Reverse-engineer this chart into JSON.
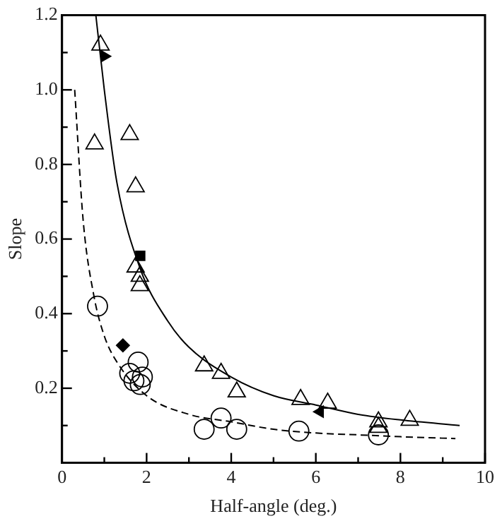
{
  "chart_data": {
    "type": "scatter",
    "xlabel": "Half-angle (deg.)",
    "ylabel": "Slope",
    "xlim": [
      0,
      10
    ],
    "ylim": [
      0,
      1.2
    ],
    "xticks": [
      0,
      {
        "value": 1,
        "label": null
      },
      2,
      {
        "value": 3,
        "label": null
      },
      4,
      {
        "value": 5,
        "label": null
      },
      6,
      {
        "value": 7,
        "label": null
      },
      8,
      {
        "value": 9,
        "label": null
      },
      10
    ],
    "yticks": [
      {
        "value": 0,
        "label": null
      },
      {
        "value": 0.1,
        "label": null
      },
      0.2,
      {
        "value": 0.3,
        "label": null
      },
      0.4,
      {
        "value": 0.5,
        "label": null
      },
      0.6,
      {
        "value": 0.7,
        "label": null
      },
      0.8,
      {
        "value": 0.9,
        "label": null
      },
      {
        "value": 1.0,
        "label": "1.0"
      },
      {
        "value": 1.1,
        "label": null
      },
      1.2
    ],
    "grid": false,
    "legend": false,
    "series": [
      {
        "type": "line",
        "color": "#000000",
        "line_style": "solid",
        "marker": "none",
        "x": [
          0.8,
          1.0,
          1.3,
          1.85,
          2.5,
          3,
          4,
          5,
          6,
          7,
          8,
          9.4
        ],
        "values": [
          1.2,
          1.0,
          0.75,
          0.52,
          0.38,
          0.31,
          0.23,
          0.18,
          0.155,
          0.13,
          0.115,
          0.1
        ]
      },
      {
        "type": "line",
        "color": "#000000",
        "line_style": "dashed",
        "marker": "none",
        "x": [
          0.3,
          0.5,
          0.75,
          1,
          1.3,
          2,
          3,
          4,
          5,
          6,
          7,
          8,
          9.3
        ],
        "values": [
          1.0,
          0.65,
          0.45,
          0.34,
          0.27,
          0.18,
          0.13,
          0.11,
          0.09,
          0.08,
          0.075,
          0.07,
          0.065
        ]
      },
      {
        "color": "#000000",
        "marker": "triangle",
        "x": [
          0.91,
          0.77,
          1.6,
          1.74,
          1.74,
          1.84,
          1.84,
          3.36,
          3.76,
          4.13,
          5.64,
          6.28,
          7.48,
          7.48,
          8.22
        ],
        "values": [
          1.12,
          0.855,
          0.88,
          0.74,
          0.525,
          0.5,
          0.475,
          0.26,
          0.24,
          0.19,
          0.17,
          0.16,
          0.11,
          0.095,
          0.114
        ]
      },
      {
        "color": "#000000",
        "marker": "circle",
        "x": [
          0.84,
          1.6,
          1.8,
          1.7,
          1.9,
          1.85,
          3.36,
          3.76,
          4.13,
          5.6,
          7.48
        ],
        "values": [
          0.42,
          0.24,
          0.27,
          0.22,
          0.23,
          0.21,
          0.09,
          0.12,
          0.09,
          0.085,
          0.075
        ]
      },
      {
        "color": "#000000",
        "marker": "triangle",
        "x": [
          1.0
        ],
        "values": [
          1.09
        ]
      },
      {
        "color": "#000000",
        "marker": "square",
        "x": [
          1.85
        ],
        "values": [
          0.555
        ]
      },
      {
        "color": "#000000",
        "marker": "diamond",
        "x": [
          1.44
        ],
        "values": [
          0.315
        ]
      },
      {
        "color": "#000000",
        "marker": "triangle",
        "x": [
          6.1
        ],
        "values": [
          0.137
        ]
      }
    ]
  }
}
